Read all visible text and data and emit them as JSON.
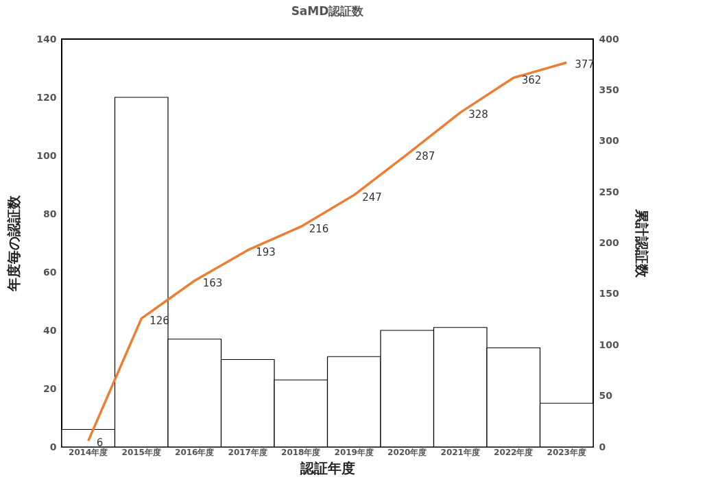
{
  "chart_data": {
    "type": "bar",
    "title": "SaMD認証数",
    "xlabel": "認証年度",
    "ylabel": "年度毎の認証数",
    "y2label": "累計認証数",
    "categories": [
      "2014年度",
      "2015年度",
      "2016年度",
      "2017年度",
      "2018年度",
      "2019年度",
      "2020年度",
      "2021年度",
      "2022年度",
      "2023年度"
    ],
    "series": [
      {
        "color": "#ffffff",
        "values": [
          6,
          120,
          37,
          30,
          23,
          31,
          40,
          41,
          34,
          15
        ]
      },
      {
        "type": "line",
        "axis": "y2",
        "color": "#ed7d31",
        "values": [
          6,
          126,
          163,
          193,
          216,
          247,
          287,
          328,
          362,
          377
        ],
        "value_labels": [
          "6",
          "126",
          "163",
          "193",
          "216",
          "247",
          "287",
          "328",
          "362",
          "377"
        ]
      }
    ],
    "ylim": [
      0,
      140
    ],
    "yticks": [
      0,
      20,
      40,
      60,
      80,
      100,
      120,
      140
    ],
    "y2lim": [
      0,
      400
    ],
    "y2ticks": [
      0,
      50,
      100,
      150,
      200,
      250,
      300,
      350,
      400
    ],
    "grid": false,
    "marker": "none",
    "line_style": "solid"
  }
}
